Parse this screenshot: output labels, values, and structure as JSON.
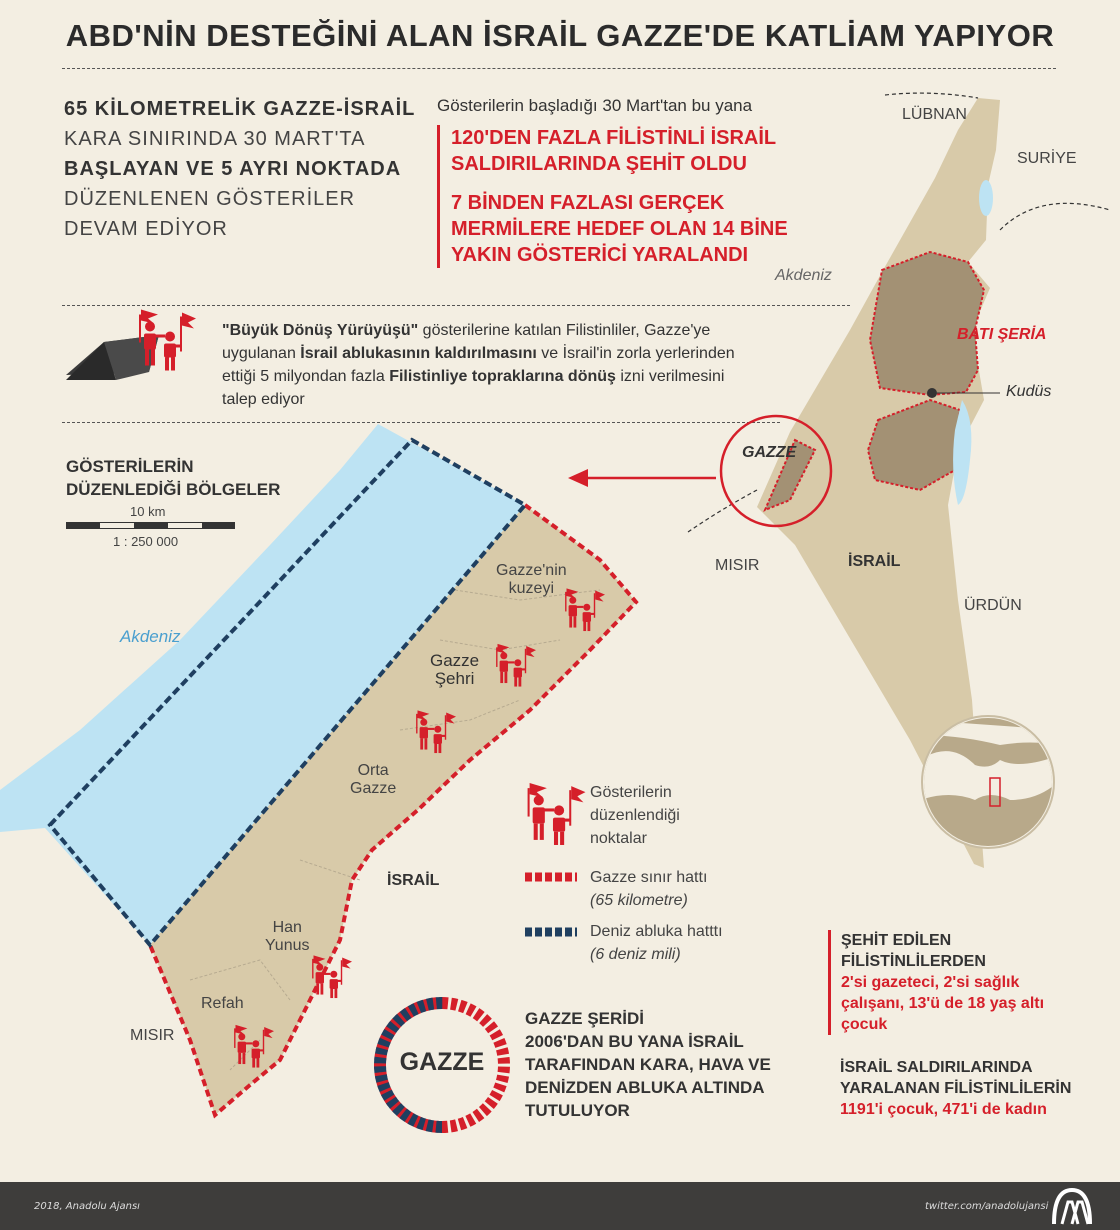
{
  "title": "ABD'NİN DESTEĞİNİ ALAN İSRAİL GAZZE'DE KATLİAM YAPIYOR",
  "intro": [
    "65 KİLOMETRELİK GAZZE-İSRAİL",
    "KARA SINIRINDA 30 MART'TA",
    "BAŞLAYAN VE 5 AYRI NOKTADA",
    "DÜZENLENEN GÖSTERİLER",
    "DEVAM EDİYOR"
  ],
  "since": "Gösterilerin başladığı 30 Mart'tan bu yana",
  "killed": [
    "120'DEN FAZLA FİLİSTİNLİ İSRAİL",
    "SALDIRILARINDA ŞEHİT OLDU"
  ],
  "wounded": [
    "7 BİNDEN FAZLASI GERÇEK",
    "MERMİLERE HEDEF OLAN 14 BİNE",
    "YAKIN GÖSTERİCİ YARALANDI"
  ],
  "march_paragraph": {
    "p1": "\"Büyük Dönüş Yürüyüşü\"",
    "p2": " gösterilerine katılan Filistinliler, Gazze'ye",
    "p3": "uygulanan ",
    "p4": "İsrail ablukasının kaldırılmasını",
    "p5": " ve İsrail'in zorla yerlerinden",
    "p6": "ettiği 5 milyondan fazla ",
    "p7": "Filistinliye topraklarına dönüş",
    "p8": " izni verilmesini",
    "p9": "talep ediyor"
  },
  "regions_heading": [
    "GÖSTERİLERİN",
    "DÜZENLEDİĞİ BÖLGELER"
  ],
  "scale": {
    "distance": "10 km",
    "ratio": "1 : 250 000"
  },
  "gaza_map": {
    "sea": "Akdeniz",
    "north": [
      "Gazze'nin",
      "kuzeyi"
    ],
    "city": [
      "Gazze",
      "Şehri"
    ],
    "middle": [
      "Orta",
      "Gazze"
    ],
    "khan": [
      "Han",
      "Yunus"
    ],
    "rafah": "Refah",
    "egypt": "MISIR",
    "israel": "İSRAİL"
  },
  "legend": {
    "points": [
      "Gösterilerin",
      "düzenlendiği",
      "noktalar"
    ],
    "border": "Gazze sınır hattı",
    "border_len": "(65 kilometre)",
    "blockade": "Deniz abluka hatttı",
    "blockade_len": "(6 deniz mili)"
  },
  "badge": "GAZZE",
  "blockade_text": [
    "GAZZE ŞERİDİ",
    "2006'DAN BU YANA İSRAİL",
    "TARAFINDAN KARA, HAVA VE",
    "DENİZDEN ABLUKA ALTINDA",
    "TUTULUYOR"
  ],
  "stats": {
    "martyrs_h": [
      "ŞEHİT EDİLEN",
      "FİLİSTİNLİLERDEN"
    ],
    "martyrs_v": [
      "2'si gazeteci, 2'si sağlık",
      "çalışanı, 13'ü de 18 yaş altı",
      "çocuk"
    ],
    "injured_h": [
      "İSRAİL SALDIRILARINDA",
      "YARALANAN FİLİSTİNLİLERİN"
    ],
    "injured_v": [
      "1191'i  çocuk, 471'i de kadın"
    ]
  },
  "region_map": {
    "lebanon": "LÜBNAN",
    "syria": "SURİYE",
    "sea": "Akdeniz",
    "westbank": "BATI ŞERİA",
    "jerusalem": "Kudüs",
    "gaza": "GAZZE",
    "egypt": "MISIR",
    "israel": "İSRAİL",
    "jordan": "ÜRDÜN"
  },
  "footer": {
    "credit": "2018, Anadolu Ajansı",
    "twitter": "twitter.com/anadolujansi",
    "logo": "AA"
  },
  "colors": {
    "accent": "#d51f2a",
    "navy": "#1f3f60",
    "sea": "#bde3f3",
    "land": "#d8caa9",
    "westbank": "#a39174",
    "background": "#f3eee2"
  }
}
